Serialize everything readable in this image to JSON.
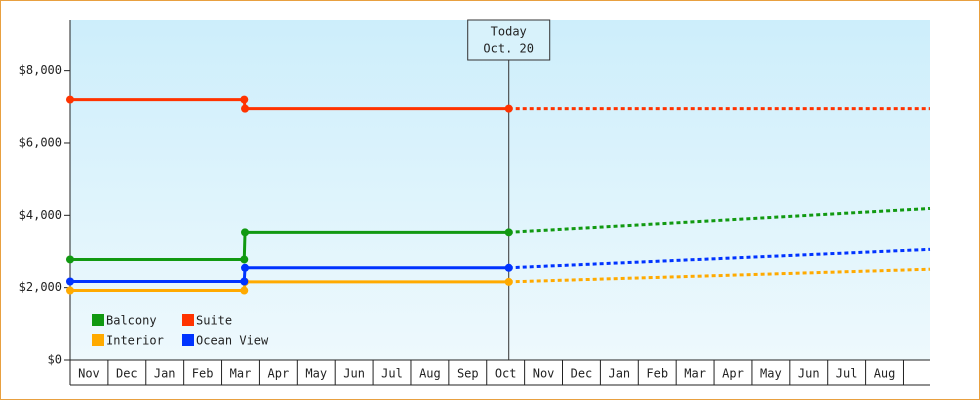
{
  "chart_data": {
    "type": "line",
    "annotation": {
      "x": 11.58,
      "lines": [
        "Today",
        "Oct. 20"
      ]
    },
    "xlim": [
      0,
      22.7
    ],
    "xticks": [
      {
        "value": 0.5,
        "label": "Nov"
      },
      {
        "value": 1.5,
        "label": "Dec"
      },
      {
        "value": 2.5,
        "label": "Jan"
      },
      {
        "value": 3.5,
        "label": "Feb"
      },
      {
        "value": 4.5,
        "label": "Mar"
      },
      {
        "value": 5.5,
        "label": "Apr"
      },
      {
        "value": 6.5,
        "label": "May"
      },
      {
        "value": 7.5,
        "label": "Jun"
      },
      {
        "value": 8.5,
        "label": "Jul"
      },
      {
        "value": 9.5,
        "label": "Aug"
      },
      {
        "value": 10.5,
        "label": "Sep"
      },
      {
        "value": 11.5,
        "label": "Oct"
      },
      {
        "value": 12.5,
        "label": "Nov"
      },
      {
        "value": 13.5,
        "label": "Dec"
      },
      {
        "value": 14.5,
        "label": "Jan"
      },
      {
        "value": 15.5,
        "label": "Feb"
      },
      {
        "value": 16.5,
        "label": "Mar"
      },
      {
        "value": 17.5,
        "label": "Apr"
      },
      {
        "value": 18.5,
        "label": "May"
      },
      {
        "value": 19.5,
        "label": "Jun"
      },
      {
        "value": 20.5,
        "label": "Jul"
      },
      {
        "value": 21.5,
        "label": "Aug"
      }
    ],
    "ylim": [
      0,
      9400
    ],
    "yticks": [
      {
        "value": 0,
        "label": "$0"
      },
      {
        "value": 2000,
        "label": "$2,000"
      },
      {
        "value": 4000,
        "label": "$4,000"
      },
      {
        "value": 6000,
        "label": "$6,000"
      },
      {
        "value": 8000,
        "label": "$8,000"
      }
    ],
    "series": [
      {
        "name": "Balcony",
        "color": "#119911",
        "x": [
          0,
          4.6,
          4.62,
          11.58
        ],
        "values": [
          2780,
          2780,
          3530,
          3530
        ],
        "forecast_x": [
          11.58,
          22.7
        ],
        "forecast_values": [
          3530,
          4190
        ]
      },
      {
        "name": "Suite",
        "color": "#ff3300",
        "x": [
          0,
          4.6,
          4.62,
          11.58
        ],
        "values": [
          7200,
          7200,
          6950,
          6950
        ],
        "forecast_x": [
          11.58,
          22.7
        ],
        "forecast_values": [
          6950,
          6950
        ]
      },
      {
        "name": "Interior",
        "color": "#ffaa00",
        "x": [
          0,
          4.6,
          4.62,
          11.58
        ],
        "values": [
          1920,
          1920,
          2160,
          2160
        ],
        "forecast_x": [
          11.58,
          22.7
        ],
        "forecast_values": [
          2160,
          2510
        ]
      },
      {
        "name": "Ocean View",
        "color": "#0033ff",
        "x": [
          0,
          4.6,
          4.62,
          11.58
        ],
        "values": [
          2170,
          2170,
          2550,
          2550
        ],
        "forecast_x": [
          11.58,
          22.7
        ],
        "forecast_values": [
          2550,
          3060
        ]
      }
    ]
  }
}
